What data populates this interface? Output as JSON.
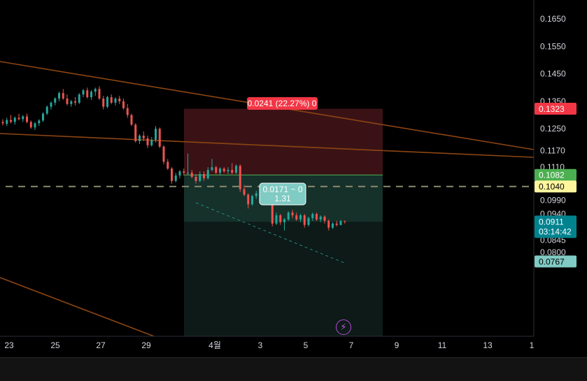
{
  "chart_data": {
    "type": "candlestick",
    "title": "",
    "price_axis": {
      "ticks": [
        "0.1650",
        "0.1550",
        "0.1450",
        "0.1350",
        "0.1250",
        "0.1170",
        "0.1110",
        "0.0990",
        "0.0940",
        "0.0845",
        "0.0800"
      ],
      "range": [
        0.075,
        0.172
      ]
    },
    "time_axis": {
      "ticks": [
        "23",
        "25",
        "27",
        "29",
        "4월",
        "3",
        "5",
        "7",
        "9",
        "11",
        "13",
        "1"
      ]
    },
    "price_tags": [
      {
        "label": "0.1323",
        "value": 0.1323,
        "color": "#f23645",
        "text_color": "#ffffff"
      },
      {
        "label": "0.1082",
        "value": 0.1082,
        "color": "#4caf50",
        "text_color": "#ffffff"
      },
      {
        "label": "0.1040",
        "value": 0.104,
        "color": "#fff59d",
        "text_color": "#000000"
      },
      {
        "label": "0.0911",
        "sublabel": "03:14:42",
        "value": 0.0911,
        "color": "#00838f",
        "text_color": "#ffffff"
      },
      {
        "label": "0.0767",
        "value": 0.0767,
        "color": "#80cbc4",
        "text_color": "#000000"
      }
    ],
    "position_tool": {
      "stop_label": "0.0241 (22.27%) 0",
      "target_label_line1": "0.0171 ~ 0",
      "target_label_line2": "1.31",
      "stop_price": 0.1323,
      "entry_price": 0.1082,
      "target_price": 0.0911
    },
    "horizontal_line": {
      "value": 0.104,
      "style": "dashed"
    },
    "colors": {
      "up": "#26a69a",
      "down": "#ef5350",
      "trendline": "#8b4513",
      "stop_zone": "#3a1216",
      "target_zone": "#16302a"
    },
    "candles": [
      [
        0.1275,
        0.1285,
        0.1262,
        0.127
      ],
      [
        0.1268,
        0.129,
        0.126,
        0.1282
      ],
      [
        0.1282,
        0.13,
        0.127,
        0.1275
      ],
      [
        0.1275,
        0.1295,
        0.1265,
        0.129
      ],
      [
        0.129,
        0.1305,
        0.128,
        0.1285
      ],
      [
        0.1285,
        0.13,
        0.1275,
        0.1295
      ],
      [
        0.1295,
        0.1305,
        0.127,
        0.1275
      ],
      [
        0.1275,
        0.128,
        0.125,
        0.1255
      ],
      [
        0.1255,
        0.1275,
        0.1245,
        0.127
      ],
      [
        0.127,
        0.1285,
        0.126,
        0.128
      ],
      [
        0.128,
        0.131,
        0.1275,
        0.1305
      ],
      [
        0.1305,
        0.1335,
        0.13,
        0.133
      ],
      [
        0.133,
        0.135,
        0.132,
        0.1345
      ],
      [
        0.1345,
        0.1365,
        0.1335,
        0.136
      ],
      [
        0.136,
        0.1385,
        0.135,
        0.138
      ],
      [
        0.138,
        0.1395,
        0.1355,
        0.136
      ],
      [
        0.136,
        0.1375,
        0.1335,
        0.134
      ],
      [
        0.134,
        0.1355,
        0.133,
        0.135
      ],
      [
        0.135,
        0.1365,
        0.1335,
        0.1345
      ],
      [
        0.1345,
        0.138,
        0.134,
        0.1375
      ],
      [
        0.1375,
        0.1395,
        0.1365,
        0.139
      ],
      [
        0.139,
        0.14,
        0.136,
        0.1365
      ],
      [
        0.1365,
        0.139,
        0.1355,
        0.1385
      ],
      [
        0.1385,
        0.14,
        0.137,
        0.1395
      ],
      [
        0.1395,
        0.1405,
        0.1355,
        0.136
      ],
      [
        0.136,
        0.137,
        0.132,
        0.133
      ],
      [
        0.133,
        0.137,
        0.1325,
        0.1365
      ],
      [
        0.1365,
        0.1375,
        0.134,
        0.1345
      ],
      [
        0.1345,
        0.1365,
        0.1335,
        0.136
      ],
      [
        0.136,
        0.137,
        0.134,
        0.135
      ],
      [
        0.135,
        0.136,
        0.132,
        0.1325
      ],
      [
        0.1325,
        0.134,
        0.129,
        0.13
      ],
      [
        0.13,
        0.1305,
        0.126,
        0.1265
      ],
      [
        0.1265,
        0.127,
        0.12,
        0.1205
      ],
      [
        0.1205,
        0.123,
        0.1195,
        0.1225
      ],
      [
        0.1225,
        0.124,
        0.1205,
        0.1215
      ],
      [
        0.1215,
        0.1225,
        0.118,
        0.119
      ],
      [
        0.119,
        0.122,
        0.1185,
        0.121
      ],
      [
        0.121,
        0.126,
        0.12,
        0.125
      ],
      [
        0.125,
        0.1255,
        0.118,
        0.1185
      ],
      [
        0.1185,
        0.119,
        0.112,
        0.113
      ],
      [
        0.113,
        0.114,
        0.11,
        0.1105
      ],
      [
        0.1105,
        0.111,
        0.105,
        0.106
      ],
      [
        0.106,
        0.109,
        0.1055,
        0.108
      ],
      [
        0.108,
        0.11,
        0.107,
        0.1095
      ],
      [
        0.1095,
        0.1105,
        0.108,
        0.109
      ],
      [
        0.109,
        0.116,
        0.108,
        0.109
      ],
      [
        0.109,
        0.11,
        0.107,
        0.1075
      ],
      [
        0.1075,
        0.1085,
        0.105,
        0.106
      ],
      [
        0.106,
        0.1095,
        0.1055,
        0.1085
      ],
      [
        0.1085,
        0.1095,
        0.106,
        0.107
      ],
      [
        0.107,
        0.111,
        0.1065,
        0.11
      ],
      [
        0.11,
        0.114,
        0.1095,
        0.111
      ],
      [
        0.111,
        0.1115,
        0.1085,
        0.109
      ],
      [
        0.109,
        0.111,
        0.108,
        0.1105
      ],
      [
        0.1105,
        0.111,
        0.109,
        0.1095
      ],
      [
        0.1095,
        0.111,
        0.1085,
        0.11
      ],
      [
        0.11,
        0.1125,
        0.1085,
        0.109
      ],
      [
        0.109,
        0.112,
        0.1085,
        0.1115
      ],
      [
        0.1115,
        0.112,
        0.102,
        0.103
      ],
      [
        0.103,
        0.1045,
        0.1005,
        0.101
      ],
      [
        0.101,
        0.1015,
        0.096,
        0.0975
      ],
      [
        0.0975,
        0.101,
        0.097,
        0.1005
      ],
      [
        0.1005,
        0.1025,
        0.0995,
        0.1015
      ],
      [
        0.1015,
        0.102,
        0.0985,
        0.0995
      ],
      [
        0.0995,
        0.1015,
        0.099,
        0.101
      ],
      [
        0.101,
        0.102,
        0.0985,
        0.099
      ],
      [
        0.099,
        0.0995,
        0.0895,
        0.0905
      ],
      [
        0.0905,
        0.0945,
        0.09,
        0.0935
      ],
      [
        0.0935,
        0.094,
        0.09,
        0.091
      ],
      [
        0.091,
        0.0925,
        0.088,
        0.092
      ],
      [
        0.092,
        0.095,
        0.0915,
        0.0945
      ],
      [
        0.0945,
        0.0955,
        0.0925,
        0.0935
      ],
      [
        0.0935,
        0.0945,
        0.0915,
        0.092
      ],
      [
        0.092,
        0.094,
        0.091,
        0.0935
      ],
      [
        0.0935,
        0.094,
        0.089,
        0.09
      ],
      [
        0.09,
        0.093,
        0.0895,
        0.0925
      ],
      [
        0.0925,
        0.0945,
        0.0915,
        0.094
      ],
      [
        0.094,
        0.0945,
        0.0915,
        0.092
      ],
      [
        0.092,
        0.0935,
        0.091,
        0.093
      ],
      [
        0.093,
        0.0935,
        0.0905,
        0.0915
      ],
      [
        0.0915,
        0.092,
        0.088,
        0.089
      ],
      [
        0.089,
        0.091,
        0.0885,
        0.0905
      ],
      [
        0.0905,
        0.0915,
        0.0895,
        0.09
      ],
      [
        0.09,
        0.0918,
        0.0898,
        0.0914
      ],
      [
        0.0914,
        0.0916,
        0.0905,
        0.0911
      ]
    ]
  }
}
